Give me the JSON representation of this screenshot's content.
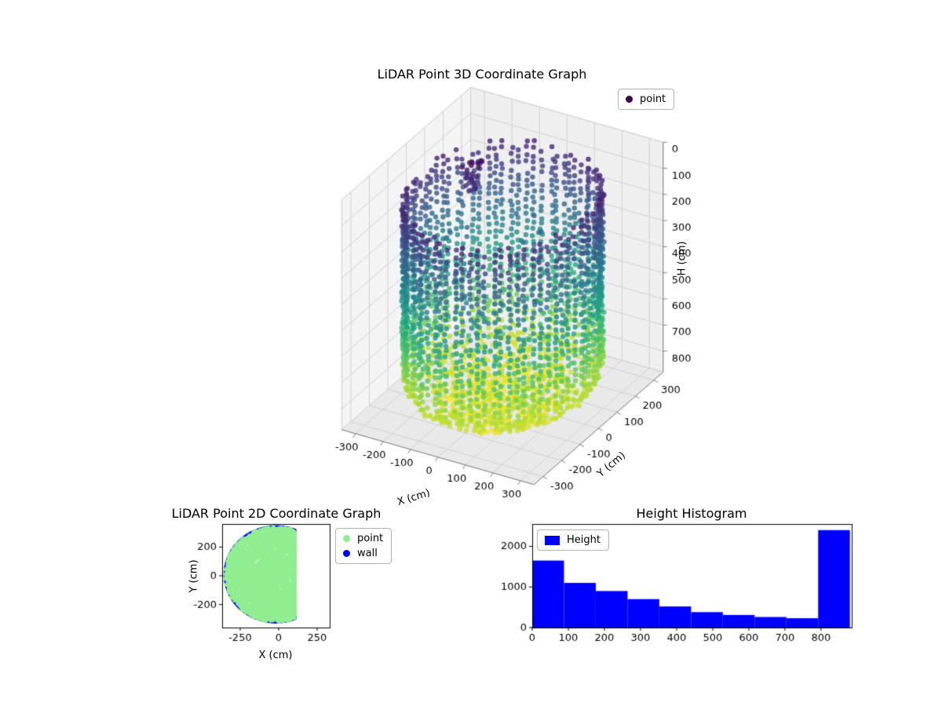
{
  "figure": {
    "background": "#ffffff"
  },
  "chart_data": [
    {
      "id": "lidar3d",
      "type": "scatter3d",
      "title": "LiDAR Point 3D Coordinate Graph",
      "xlabel": "X (cm)",
      "ylabel": "Y (cm)",
      "zlabel": "H (cm)",
      "xlim": [
        -350,
        350
      ],
      "ylim": [
        -350,
        350
      ],
      "zlim": [
        0,
        880
      ],
      "z_inverted": true,
      "xticks": [
        -300,
        -200,
        -100,
        0,
        100,
        200,
        300
      ],
      "yticks": [
        -300,
        -200,
        -100,
        0,
        100,
        200,
        300
      ],
      "zticks": [
        0,
        100,
        200,
        300,
        400,
        500,
        600,
        700,
        800
      ],
      "legend": [
        {
          "label": "point",
          "color": "#440154"
        }
      ],
      "colormap": "viridis",
      "viridis_stops": [
        "#440154",
        "#46327e",
        "#365c8d",
        "#277f8e",
        "#1fa187",
        "#4ac16d",
        "#a0da39",
        "#fde725"
      ],
      "point_cloud": {
        "description": "cylindrical LiDAR wall scan, vertical dot columns colored by height (dark purple H=0 top, yellow H=880 bottom), rounded bowl bottom, sparse interior points, small dark cluster near top",
        "wall": {
          "radius": 300,
          "columns": 76,
          "h_min": 80,
          "h_max": 820,
          "h_step": 24,
          "bowl_start": 740,
          "bowl_scale": 170
        },
        "floor": {
          "count": 700,
          "h_min": 780,
          "h_max": 880
        },
        "interior": {
          "count": 160,
          "h_min": 260,
          "h_max": 800,
          "r_max": 270
        },
        "top_cluster": {
          "count": 30,
          "center_x": -140,
          "center_y": 45,
          "spread": 25,
          "h_min": 30,
          "h_max": 150
        },
        "seed": 42,
        "point_radius": 3.2,
        "alpha": 0.8
      }
    },
    {
      "id": "lidar2d",
      "type": "scatter",
      "title": "LiDAR Point 2D Coordinate Graph",
      "xlabel": "X (cm)",
      "ylabel": "Y (cm)",
      "xlim": [
        -367,
        332
      ],
      "ylim": [
        -360,
        360
      ],
      "xticks": [
        -250,
        0,
        250
      ],
      "yticks": [
        -200,
        0,
        200
      ],
      "legend": [
        {
          "label": "point",
          "color": "#90ee90"
        },
        {
          "label": "wall",
          "color": "#0000ff"
        }
      ],
      "region": {
        "description": "dense light-green floor points filling a circular room clipped by a flat wall on the right; blue wall points along boundary",
        "center_x": -17,
        "center_y": 10,
        "radius": 330,
        "wall_x": 105,
        "fill_count": 3200,
        "seed": 7,
        "point_color": "#90ee90",
        "wall_color": "#0000ff"
      }
    },
    {
      "id": "height_hist",
      "type": "bar",
      "title": "Height Histogram",
      "bin_edges": [
        0,
        88,
        176,
        264,
        352,
        440,
        528,
        616,
        704,
        792,
        880
      ],
      "values": [
        1650,
        1100,
        900,
        700,
        520,
        380,
        310,
        260,
        230,
        2400
      ],
      "xticks": [
        0,
        100,
        200,
        300,
        400,
        500,
        600,
        700,
        800
      ],
      "yticks": [
        0,
        1000,
        2000
      ],
      "xlim": [
        0,
        885
      ],
      "ylim": [
        0,
        2550
      ],
      "bar_color": "#0000ff",
      "legend": [
        {
          "label": "Height",
          "color": "#0000ff"
        }
      ]
    }
  ]
}
